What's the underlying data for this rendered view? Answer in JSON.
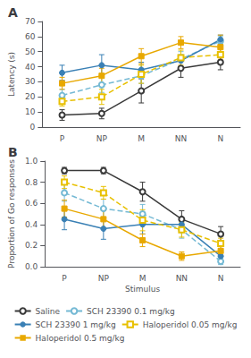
{
  "chart_data": [
    {
      "type": "line",
      "title": "A",
      "ylabel": "Latency (s)",
      "categories": [
        "P",
        "NP",
        "M",
        "NN",
        "N"
      ],
      "ylim": [
        0,
        70
      ],
      "yticks": [
        0,
        10,
        20,
        30,
        40,
        50,
        60,
        70
      ],
      "grid": false,
      "legend": "bottom",
      "series": [
        {
          "name": "Saline",
          "color": "#3a3a3a",
          "values": [
            8,
            9,
            24,
            39,
            43
          ],
          "yerr": [
            3.5,
            3.5,
            8,
            6,
            5
          ],
          "marker": "open_circle",
          "line_style": "solid"
        },
        {
          "name": "SCH 23390 0.1 mg/kg",
          "color": "#74b9d4",
          "values": [
            21,
            28,
            34,
            45,
            57
          ],
          "yerr": [
            4,
            5,
            5,
            5,
            3
          ],
          "marker": "open_circle",
          "line_style": "dashed"
        },
        {
          "name": "SCH 23390 1 mg/kg",
          "color": "#3a80b5",
          "values": [
            36,
            41,
            38,
            44,
            58
          ],
          "yerr": [
            5,
            7,
            5,
            4,
            3
          ],
          "marker": "circle",
          "line_style": "solid"
        },
        {
          "name": "Haloperidol 0.05 mg/kg",
          "color": "#e8c000",
          "values": [
            17,
            20,
            35,
            46,
            48
          ],
          "yerr": [
            3,
            5,
            6,
            5,
            5
          ],
          "marker": "open_square",
          "line_style": "dashed"
        },
        {
          "name": "Haloperidol 0.5 mg/kg",
          "color": "#e8a800",
          "values": [
            29,
            34,
            47,
            56,
            53
          ],
          "yerr": [
            4,
            5,
            5,
            4,
            8
          ],
          "marker": "square",
          "line_style": "solid"
        }
      ]
    },
    {
      "type": "line",
      "title": "B",
      "ylabel": "Proportion of Go responses",
      "xlabel": "Stimulus",
      "categories": [
        "P",
        "NP",
        "M",
        "NN",
        "N"
      ],
      "ylim": [
        0,
        1
      ],
      "yticks": [
        {
          "value": 0,
          "label": "0.0"
        },
        0.2,
        0.4,
        0.6,
        0.8,
        {
          "value": 1,
          "label": "1.0"
        }
      ],
      "grid": false,
      "series": [
        {
          "name": "Saline",
          "color": "#3a3a3a",
          "values": [
            0.91,
            0.91,
            0.71,
            0.45,
            0.31
          ],
          "yerr": [
            0.03,
            0.03,
            0.09,
            0.08,
            0.07
          ],
          "marker": "open_circle",
          "line_style": "solid"
        },
        {
          "name": "SCH 23390 0.1 mg/kg",
          "color": "#74b9d4",
          "values": [
            0.7,
            0.55,
            0.5,
            0.35,
            0.05
          ],
          "yerr": [
            0.08,
            0.09,
            0.09,
            0.08,
            0.03
          ],
          "marker": "open_circle",
          "line_style": "dashed"
        },
        {
          "name": "SCH 23390 1 mg/kg",
          "color": "#3a80b5",
          "values": [
            0.45,
            0.36,
            0.4,
            0.4,
            0.1
          ],
          "yerr": [
            0.1,
            0.1,
            0.09,
            0.06,
            0.04
          ],
          "marker": "circle",
          "line_style": "solid"
        },
        {
          "name": "Haloperidol 0.05 mg/kg",
          "color": "#e8c000",
          "values": [
            0.8,
            0.7,
            0.44,
            0.35,
            0.22
          ],
          "yerr": [
            0.06,
            0.06,
            0.1,
            0.07,
            0.05
          ],
          "marker": "open_square",
          "line_style": "dashed"
        },
        {
          "name": "Haloperidol 0.5 mg/kg",
          "color": "#e8a800",
          "values": [
            0.55,
            0.45,
            0.25,
            0.1,
            0.15
          ],
          "yerr": [
            0.08,
            0.08,
            0.06,
            0.04,
            0.05
          ],
          "marker": "square",
          "line_style": "solid"
        }
      ]
    }
  ]
}
